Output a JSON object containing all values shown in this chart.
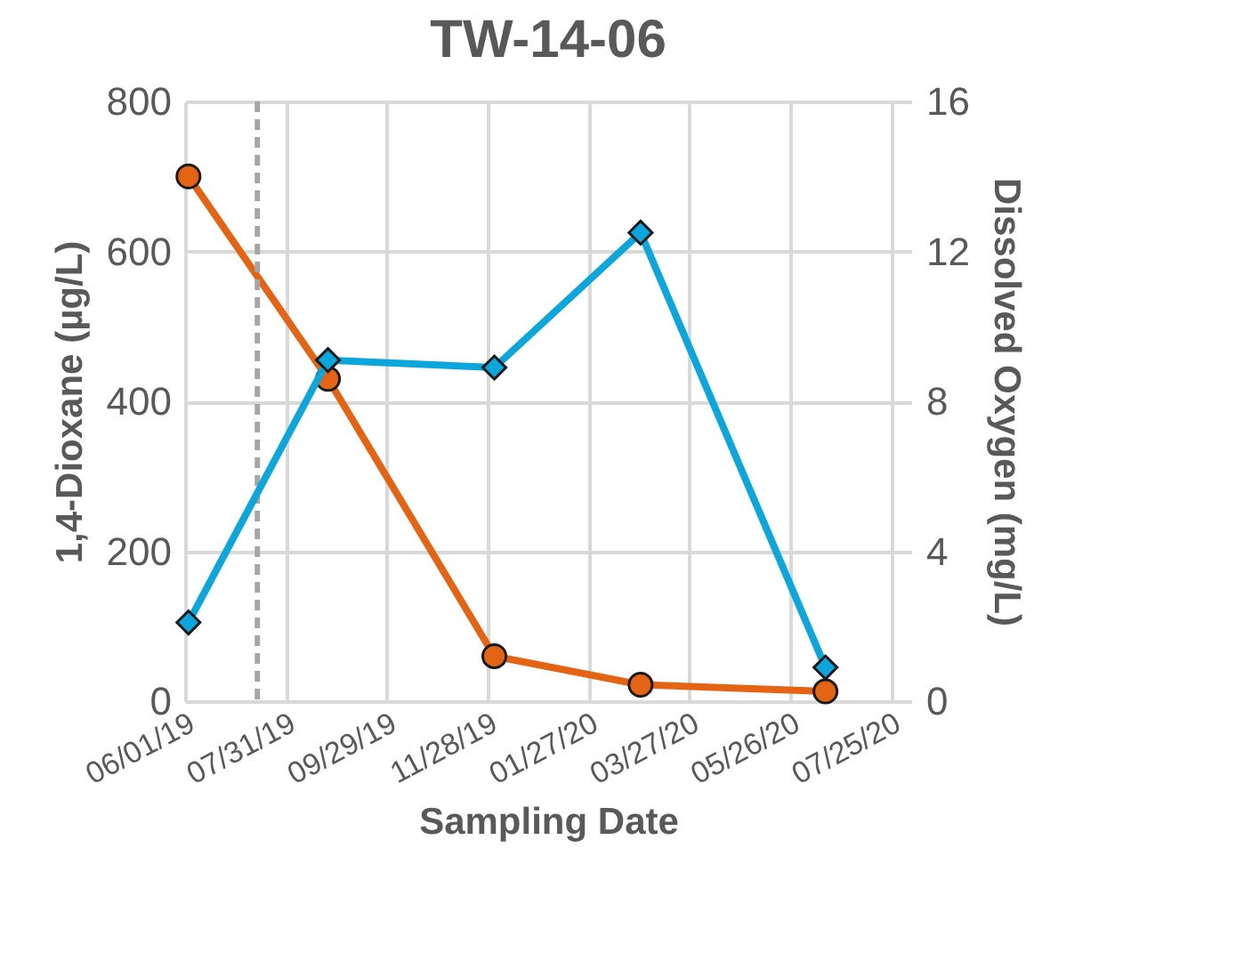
{
  "chart_data": {
    "type": "line",
    "title": "TW-14-06",
    "xlabel": "Sampling Date",
    "ylabel": "1,4-Dioxane (µg/L)",
    "y2label": "Dissolved Oxygen (mg/L)",
    "x": [
      "2019-06-03",
      "2019-08-25",
      "2019-12-02",
      "2020-02-27",
      "2020-06-16"
    ],
    "series": [
      {
        "color": "#e46414",
        "marker": "circle",
        "values": [
          700,
          430,
          60,
          22,
          13
        ]
      },
      {
        "color": "#0ba6dc",
        "marker": "diamond",
        "axis": "y2",
        "values": [
          2.1,
          9.1,
          8.9,
          12.5,
          0.9
        ]
      }
    ],
    "xlim": [
      "2019-06-01",
      "2020-08-06"
    ],
    "xticks": [
      {
        "value": "2019-06-01",
        "label": "06/01/19"
      },
      {
        "value": "2019-07-31",
        "label": "07/31/19"
      },
      {
        "value": "2019-09-29",
        "label": "09/29/19"
      },
      {
        "value": "2019-11-28",
        "label": "11/28/19"
      },
      {
        "value": "2020-01-27",
        "label": "01/27/20"
      },
      {
        "value": "2020-03-27",
        "label": "03/27/20"
      },
      {
        "value": "2020-05-26",
        "label": "05/26/20"
      },
      {
        "value": "2020-07-25",
        "label": "07/25/20"
      }
    ],
    "ylim": [
      0,
      800
    ],
    "yticks": [
      0,
      200,
      400,
      600,
      800
    ],
    "y2lim": [
      0,
      16
    ],
    "y2ticks": [
      0,
      4,
      8,
      12,
      16
    ],
    "ref_lines": [
      {
        "axis": "x",
        "value": "2019-07-14",
        "color": "#a6a6a6",
        "line_style": "dashed"
      }
    ],
    "grid": true
  }
}
